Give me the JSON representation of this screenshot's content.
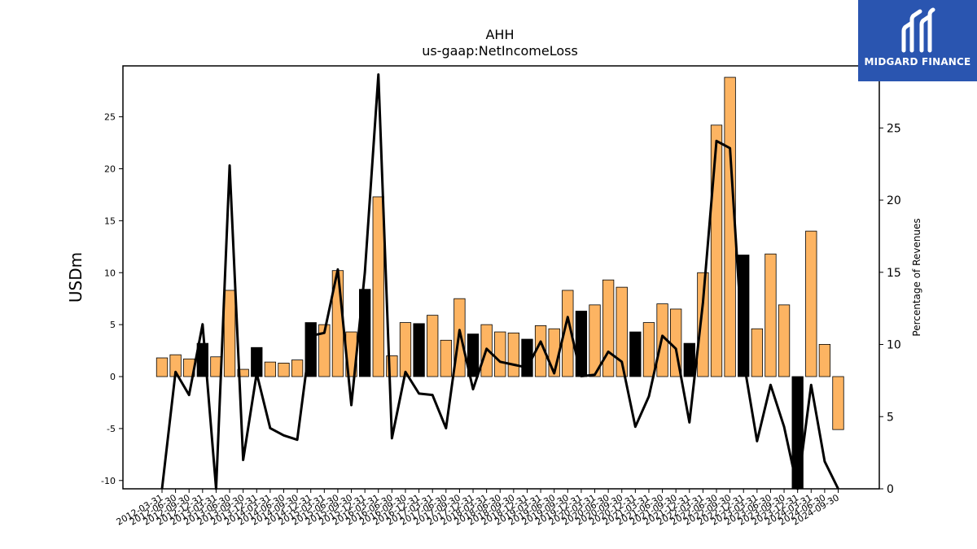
{
  "chart_data": {
    "type": "bar",
    "title": "AHH",
    "subtitle": "us-gaap:NetIncomeLoss",
    "ylabel": "USDm",
    "ylabel_right": "Percentage of Revenues",
    "ylim": [
      -10.8,
      29.9
    ],
    "ylim_right": [
      0,
      29.3
    ],
    "yticks": [
      -10,
      -5,
      0,
      5,
      10,
      15,
      20,
      25
    ],
    "yticks_right": [
      0,
      5,
      10,
      15,
      20,
      25
    ],
    "categories": [
      "2012-03-31",
      "2012-06-30",
      "2012-09-30",
      "2012-12-31",
      "2013-03-31",
      "2013-06-30",
      "2013-09-30",
      "2013-12-31",
      "2014-03-31",
      "2014-06-30",
      "2014-09-30",
      "2014-12-31",
      "2015-03-31",
      "2015-06-30",
      "2015-09-30",
      "2015-12-31",
      "2016-03-31",
      "2016-06-30",
      "2016-09-30",
      "2016-12-31",
      "2017-03-31",
      "2017-06-30",
      "2017-09-30",
      "2017-12-31",
      "2018-03-31",
      "2018-06-30",
      "2018-09-30",
      "2018-12-31",
      "2019-03-31",
      "2019-06-30",
      "2019-09-30",
      "2019-12-31",
      "2020-03-31",
      "2020-06-30",
      "2020-09-30",
      "2020-12-31",
      "2021-03-31",
      "2021-06-30",
      "2021-09-30",
      "2021-12-31",
      "2022-03-31",
      "2022-06-30",
      "2022-09-30",
      "2022-12-31",
      "2023-03-31",
      "2023-06-30",
      "2023-09-30",
      "2023-12-31",
      "2024-03-31",
      "2024-06-30",
      "2024-09-30"
    ],
    "series": [
      {
        "type": "bar",
        "axis": "left",
        "values": [
          1.8,
          2.1,
          1.7,
          3.2,
          1.9,
          8.3,
          0.7,
          2.8,
          1.4,
          1.3,
          1.6,
          5.2,
          5.0,
          10.2,
          4.3,
          8.4,
          17.3,
          2.0,
          5.2,
          5.1,
          5.9,
          3.5,
          7.5,
          4.1,
          5.0,
          4.3,
          4.2,
          3.6,
          4.9,
          4.6,
          8.3,
          6.3,
          6.9,
          9.3,
          8.6,
          4.3,
          5.2,
          7.0,
          6.5,
          3.2,
          10.0,
          24.2,
          28.8,
          11.7,
          4.6,
          11.8,
          6.9,
          -10.8,
          14.0,
          3.1,
          -5.1
        ],
        "q4_color": "#000000",
        "color": "#fdb462"
      },
      {
        "type": "line",
        "axis": "right",
        "color": "#000000",
        "values": [
          0.0,
          8.1,
          6.5,
          11.4,
          -0.5,
          22.4,
          2.0,
          8.0,
          4.2,
          3.7,
          3.4,
          10.6,
          10.8,
          15.2,
          5.8,
          15.0,
          28.7,
          3.5,
          8.1,
          6.6,
          6.5,
          4.2,
          11.0,
          6.9,
          9.7,
          8.8,
          8.6,
          8.4,
          10.2,
          8.0,
          11.9,
          7.8,
          7.9,
          9.5,
          8.8,
          4.3,
          6.4,
          10.6,
          9.7,
          4.6,
          12.9,
          24.1,
          23.6,
          8.9,
          3.3,
          7.2,
          4.3,
          -1.0,
          7.2,
          1.9,
          0.0
        ]
      }
    ],
    "grid": false,
    "legend": "none"
  },
  "logo": {
    "text": "MIDGARD FINANCE"
  }
}
